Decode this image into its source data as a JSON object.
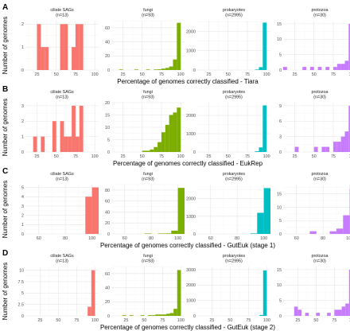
{
  "chart_data": {
    "type": "bar",
    "ylabel": "Number of genomes",
    "colors": {
      "ciliate SAGs": "#f8766d",
      "fungi": "#7cae00",
      "prokaryotes": "#00bfc4",
      "protozoa": "#c77cff"
    },
    "bin_width": 5,
    "rows": [
      {
        "letter": "A",
        "xlabel": "Percentage of genomes correctly classified - Tiara",
        "panels": [
          {
            "group": "ciliate SAGs",
            "strip_title": "ciliate SAGs",
            "strip_n": "(n=13)",
            "xlim": [
              10,
              105
            ],
            "xticks": [
              25,
              50,
              75,
              100
            ],
            "ylim": [
              0,
              2.15
            ],
            "yticks": [
              0,
              1,
              2
            ],
            "bins": [
              [
                25,
                2
              ],
              [
                30,
                1
              ],
              [
                35,
                1
              ],
              [
                55,
                2
              ],
              [
                60,
                2
              ],
              [
                70,
                1
              ],
              [
                75,
                2
              ],
              [
                80,
                2
              ]
            ]
          },
          {
            "group": "fungi",
            "strip_title": "fungi",
            "strip_n": "(n=93)",
            "xlim": [
              10,
              105
            ],
            "xticks": [
              25,
              50,
              75,
              100
            ],
            "ylim": [
              0,
              70
            ],
            "yticks": [
              0,
              20,
              40,
              60
            ],
            "bins": [
              [
                20,
                0.8
              ],
              [
                40,
                0.8
              ],
              [
                55,
                0.8
              ],
              [
                65,
                0.8
              ],
              [
                70,
                1
              ],
              [
                75,
                2
              ],
              [
                80,
                3
              ],
              [
                85,
                5
              ],
              [
                90,
                15
              ],
              [
                95,
                67
              ]
            ]
          },
          {
            "group": "prokaryotes",
            "strip_title": "prokaryotes",
            "strip_n": "(n=2995)",
            "xlim": [
              10,
              105
            ],
            "xticks": [
              25,
              50,
              75,
              100
            ],
            "ylim": [
              0,
              2550
            ],
            "yticks": [
              0,
              1000,
              2000
            ],
            "bins": [
              [
                85,
                25
              ],
              [
                90,
                150
              ],
              [
                95,
                2450
              ]
            ]
          },
          {
            "group": "protozoa",
            "strip_title": "protozoa",
            "strip_n": "(n=30)",
            "xlim": [
              10,
              105
            ],
            "xticks": [
              25,
              50,
              75,
              100
            ],
            "ylim": [
              0,
              16
            ],
            "yticks": [
              0,
              5,
              10,
              15
            ],
            "bins": [
              [
                10,
                1
              ],
              [
                35,
                1
              ],
              [
                45,
                1
              ],
              [
                55,
                1
              ],
              [
                65,
                1
              ],
              [
                75,
                1
              ],
              [
                80,
                2
              ],
              [
                85,
                2
              ],
              [
                90,
                3
              ],
              [
                95,
                15
              ]
            ]
          }
        ]
      },
      {
        "letter": "B",
        "xlabel": "Percentage of genomes correctly classified - EukRep",
        "panels": [
          {
            "group": "ciliate SAGs",
            "strip_title": "ciliate SAGs",
            "strip_n": "(n=13)",
            "xlim": [
              10,
              105
            ],
            "xticks": [
              25,
              50,
              75,
              100
            ],
            "ylim": [
              0,
              3.2
            ],
            "yticks": [
              0,
              1,
              2,
              3
            ],
            "bins": [
              [
                20,
                1
              ],
              [
                30,
                1
              ],
              [
                45,
                2
              ],
              [
                55,
                2
              ],
              [
                60,
                1
              ],
              [
                65,
                1
              ],
              [
                70,
                3
              ],
              [
                75,
                1
              ],
              [
                80,
                3
              ]
            ]
          },
          {
            "group": "fungi",
            "strip_title": "fungi",
            "strip_n": "(n=93)",
            "xlim": [
              10,
              105
            ],
            "xticks": [
              25,
              50,
              75,
              100
            ],
            "ylim": [
              0,
              20
            ],
            "yticks": [
              0,
              5,
              10,
              15,
              20
            ],
            "bins": [
              [
                50,
                0.5
              ],
              [
                55,
                0.5
              ],
              [
                60,
                1
              ],
              [
                65,
                2
              ],
              [
                70,
                4
              ],
              [
                75,
                8
              ],
              [
                80,
                11
              ],
              [
                85,
                15
              ],
              [
                90,
                16
              ],
              [
                95,
                18
              ]
            ]
          },
          {
            "group": "prokaryotes",
            "strip_title": "prokaryotes",
            "strip_n": "(n=2995)",
            "xlim": [
              10,
              105
            ],
            "xticks": [
              25,
              50,
              75,
              100
            ],
            "ylim": [
              0,
              2700
            ],
            "yticks": [
              0,
              1000,
              2000
            ],
            "bins": [
              [
                85,
                40
              ],
              [
                90,
                250
              ],
              [
                95,
                2550
              ]
            ]
          },
          {
            "group": "protozoa",
            "strip_title": "protozoa",
            "strip_n": "(n=30)",
            "xlim": [
              10,
              105
            ],
            "xticks": [
              25,
              50,
              75,
              100
            ],
            "ylim": [
              0,
              9.6
            ],
            "yticks": [
              0,
              3,
              6,
              9
            ],
            "bins": [
              [
                25,
                1
              ],
              [
                50,
                1
              ],
              [
                60,
                1
              ],
              [
                65,
                1
              ],
              [
                75,
                2
              ],
              [
                80,
                2
              ],
              [
                85,
                3
              ],
              [
                90,
                4
              ],
              [
                95,
                9
              ]
            ]
          }
        ]
      },
      {
        "letter": "C",
        "xlabel": "Percentage of genomes correctly classified - GutEuk (stage 1)",
        "panels": [
          {
            "group": "ciliate SAGs",
            "strip_title": "ciliate SAGs",
            "strip_n": "(n=13)",
            "xlim": [
              50,
              105
            ],
            "xticks": [
              60,
              80,
              100
            ],
            "ylim": [
              0,
              5.3
            ],
            "yticks": [
              0,
              1,
              2,
              3,
              4,
              5
            ],
            "bins": [
              [
                95,
                4
              ],
              [
                100,
                5
              ]
            ]
          },
          {
            "group": "fungi",
            "strip_title": "fungi",
            "strip_n": "(n=93)",
            "xlim": [
              50,
              105
            ],
            "xticks": [
              60,
              80,
              100
            ],
            "ylim": [
              0,
              90
            ],
            "yticks": [
              0,
              20,
              40,
              60,
              80
            ],
            "bins": [
              [
                75,
                0.8
              ],
              [
                85,
                0.8
              ],
              [
                90,
                1
              ],
              [
                95,
                6
              ],
              [
                100,
                84
              ]
            ]
          },
          {
            "group": "prokaryotes",
            "strip_title": "prokaryotes",
            "strip_n": "(n=2995)",
            "xlim": [
              50,
              105
            ],
            "xticks": [
              60,
              80,
              100
            ],
            "ylim": [
              0,
              2800
            ],
            "yticks": [
              0,
              1000,
              2000
            ],
            "bins": [
              [
                90,
                30
              ],
              [
                95,
                1200
              ],
              [
                100,
                2600
              ]
            ]
          },
          {
            "group": "protozoa",
            "strip_title": "protozoa",
            "strip_n": "(n=30)",
            "xlim": [
              50,
              105
            ],
            "xticks": [
              60,
              80,
              100
            ],
            "ylim": [
              0,
              18.5
            ],
            "yticks": [
              0,
              5,
              10,
              15
            ],
            "bins": [
              [
                70,
                1
              ],
              [
                85,
                1
              ],
              [
                90,
                2
              ],
              [
                95,
                7
              ],
              [
                100,
                17
              ]
            ]
          }
        ]
      },
      {
        "letter": "D",
        "xlabel": "Percentage of genomes correctly classified - GutEuk (stage 2)",
        "panels": [
          {
            "group": "ciliate SAGs",
            "strip_title": "ciliate SAGs",
            "strip_n": "(n=13)",
            "xlim": [
              5,
              105
            ],
            "xticks": [
              25,
              50,
              75,
              100
            ],
            "ylim": [
              0,
              10.8
            ],
            "yticks": [
              0,
              2.5,
              5.0,
              7.5,
              10.0
            ],
            "bins": [
              [
                90,
                2
              ],
              [
                95,
                10
              ]
            ]
          },
          {
            "group": "fungi",
            "strip_title": "fungi",
            "strip_n": "(n=93)",
            "xlim": [
              5,
              105
            ],
            "xticks": [
              25,
              50,
              75,
              100
            ],
            "ylim": [
              0,
              70
            ],
            "yticks": [
              0,
              20,
              40,
              60
            ],
            "bins": [
              [
                20,
                1
              ],
              [
                30,
                1
              ],
              [
                45,
                1
              ],
              [
                55,
                1
              ],
              [
                60,
                1
              ],
              [
                65,
                2
              ],
              [
                70,
                2
              ],
              [
                75,
                2
              ],
              [
                80,
                3
              ],
              [
                85,
                4
              ],
              [
                90,
                10
              ],
              [
                95,
                65
              ]
            ]
          },
          {
            "group": "prokaryotes",
            "strip_title": "prokaryotes",
            "strip_n": "(n=2995)",
            "xlim": [
              5,
              105
            ],
            "xticks": [
              25,
              50,
              75,
              100
            ],
            "ylim": [
              0,
              3200
            ],
            "yticks": [
              0,
              1000,
              2000,
              3000
            ],
            "bins": [
              [
                90,
                60
              ],
              [
                95,
                2950
              ]
            ]
          },
          {
            "group": "protozoa",
            "strip_title": "protozoa",
            "strip_n": "(n=30)",
            "xlim": [
              5,
              105
            ],
            "xticks": [
              25,
              50,
              75,
              100
            ],
            "ylim": [
              0,
              16
            ],
            "yticks": [
              0,
              5,
              10,
              15
            ],
            "bins": [
              [
                20,
                3
              ],
              [
                25,
                2
              ],
              [
                35,
                1
              ],
              [
                50,
                1
              ],
              [
                65,
                1
              ],
              [
                75,
                2
              ],
              [
                80,
                2
              ],
              [
                85,
                3
              ],
              [
                90,
                4
              ],
              [
                95,
                15
              ]
            ]
          }
        ]
      }
    ]
  }
}
